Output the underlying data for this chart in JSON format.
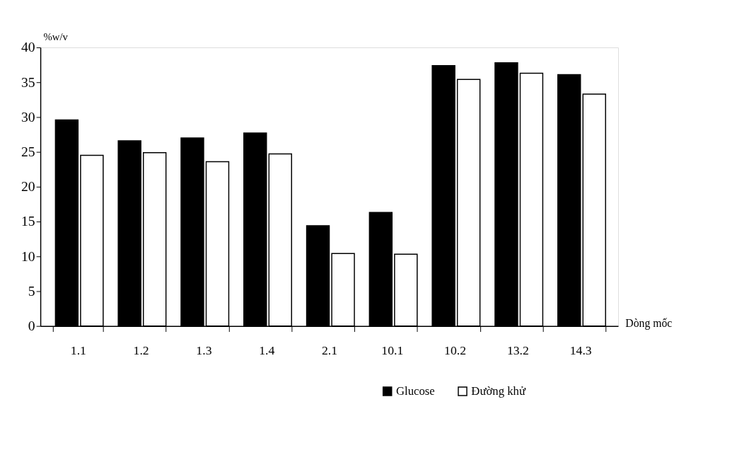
{
  "chart_data": {
    "type": "bar",
    "xlabel": "Dòng mốc",
    "ylabel": "%w/v",
    "categories": [
      "1.1",
      "1.2",
      "1.3",
      "1.4",
      "2.1",
      "10.1",
      "10.2",
      "13.2",
      "14.3"
    ],
    "series": [
      {
        "name": "Glucose",
        "color": "#000000",
        "values": [
          29.6,
          26.6,
          27.0,
          27.7,
          14.4,
          16.3,
          37.4,
          37.8,
          36.1
        ]
      },
      {
        "name": "Đường khử",
        "color": "#ffffff",
        "values": [
          24.5,
          24.9,
          23.6,
          24.7,
          10.4,
          10.3,
          35.4,
          36.3,
          33.3
        ]
      }
    ],
    "ylim": [
      0,
      40
    ],
    "yticks": [
      0,
      5,
      10,
      15,
      20,
      25,
      30,
      35,
      40
    ],
    "grid": false,
    "legend": "bottom right"
  }
}
